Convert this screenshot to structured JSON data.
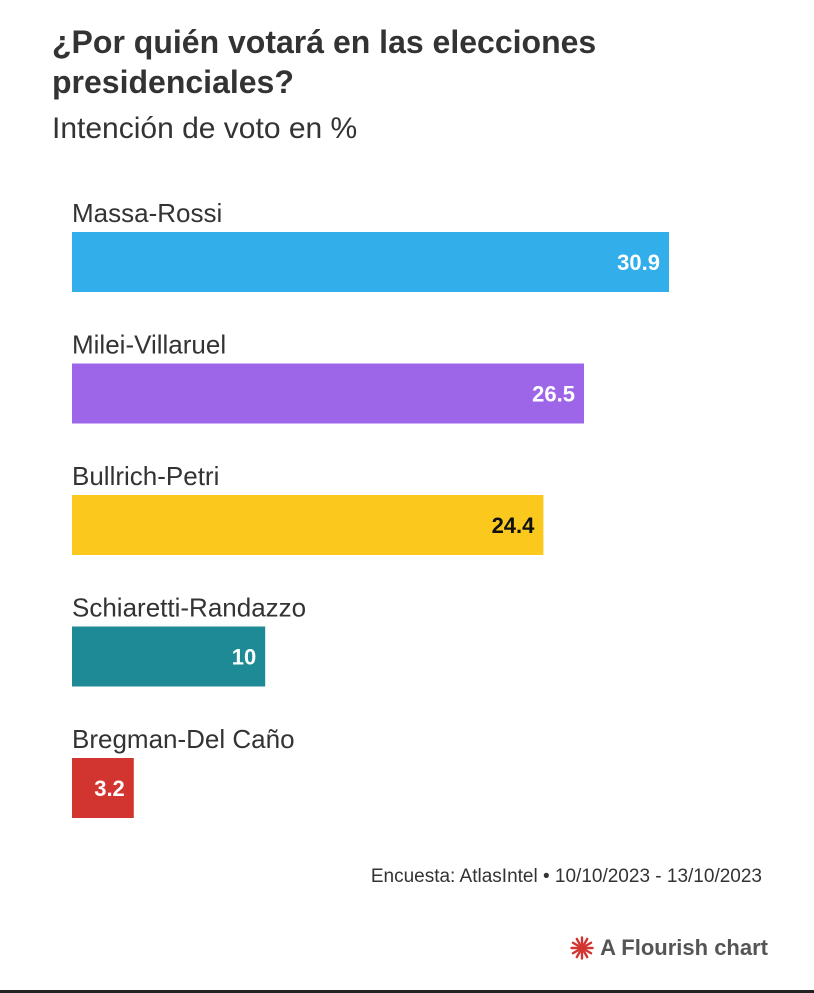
{
  "chart_data": {
    "type": "bar",
    "orientation": "horizontal",
    "title": "¿Por quién votará en las elecciones presidenciales?",
    "subtitle": "Intención de voto en %",
    "categories": [
      "Massa-Rossi",
      "Milei-Villaruel",
      "Bullrich-Petri",
      "Schiaretti-Randazzo",
      "Bregman-Del Caño"
    ],
    "values": [
      30.9,
      26.5,
      24.4,
      10,
      3.2
    ],
    "value_labels": [
      "30.9",
      "26.5",
      "24.4",
      "10",
      "3.2"
    ],
    "colors": [
      "#32aeeb",
      "#9d66e8",
      "#fbc81e",
      "#1e8a96",
      "#d2342f"
    ],
    "label_colors": [
      "#ffffff",
      "#ffffff",
      "#111111",
      "#ffffff",
      "#ffffff"
    ],
    "xlim": [
      0,
      30.9
    ],
    "grid": false,
    "legend": "none"
  },
  "footer": {
    "source": "Encuesta: AtlasIntel • 10/10/2023 - 13/10/2023",
    "brand": "A Flourish chart",
    "brand_icon": "flourish-icon",
    "brand_color": "#d2342f"
  }
}
